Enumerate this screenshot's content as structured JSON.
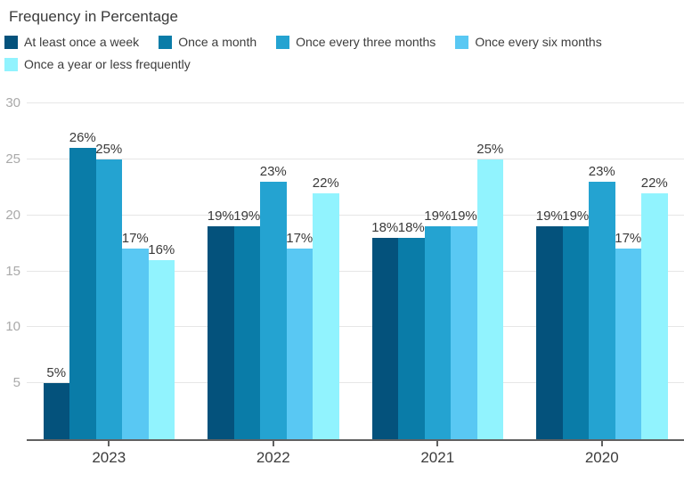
{
  "title": "Frequency in Percentage",
  "chart_data": {
    "type": "bar",
    "title": "Frequency in Percentage",
    "categories": [
      "2023",
      "2022",
      "2021",
      "2020"
    ],
    "series": [
      {
        "name": "At least once a week",
        "color": "#04527C",
        "values": [
          5,
          19,
          18,
          19
        ]
      },
      {
        "name": "Once a month",
        "color": "#0A7CA8",
        "values": [
          26,
          19,
          18,
          19
        ]
      },
      {
        "name": "Once every three months",
        "color": "#24A3D1",
        "values": [
          25,
          23,
          19,
          23
        ]
      },
      {
        "name": "Once every six months",
        "color": "#59C8F3",
        "values": [
          17,
          17,
          19,
          17
        ]
      },
      {
        "name": "Once a year or less frequently",
        "color": "#91F3FE",
        "values": [
          16,
          22,
          25,
          22
        ]
      }
    ],
    "xlabel": "",
    "ylabel": "",
    "ylim": [
      0,
      30
    ],
    "yticks": [
      5,
      10,
      15,
      20,
      25,
      30
    ],
    "grid": true,
    "legend_position": "top",
    "value_label_suffix": "%",
    "style": {
      "background": "#FFFFFF",
      "gridline_color": "#E6E6E6",
      "axis_line_color": "#616161",
      "y_tick_label_color": "#A9A9A9",
      "x_tick_label_color": "#3C3C3C",
      "value_label_color": "#3A3A3A",
      "legend_text_color": "#3C3C3C",
      "title_color": "#3A3A3A"
    }
  }
}
